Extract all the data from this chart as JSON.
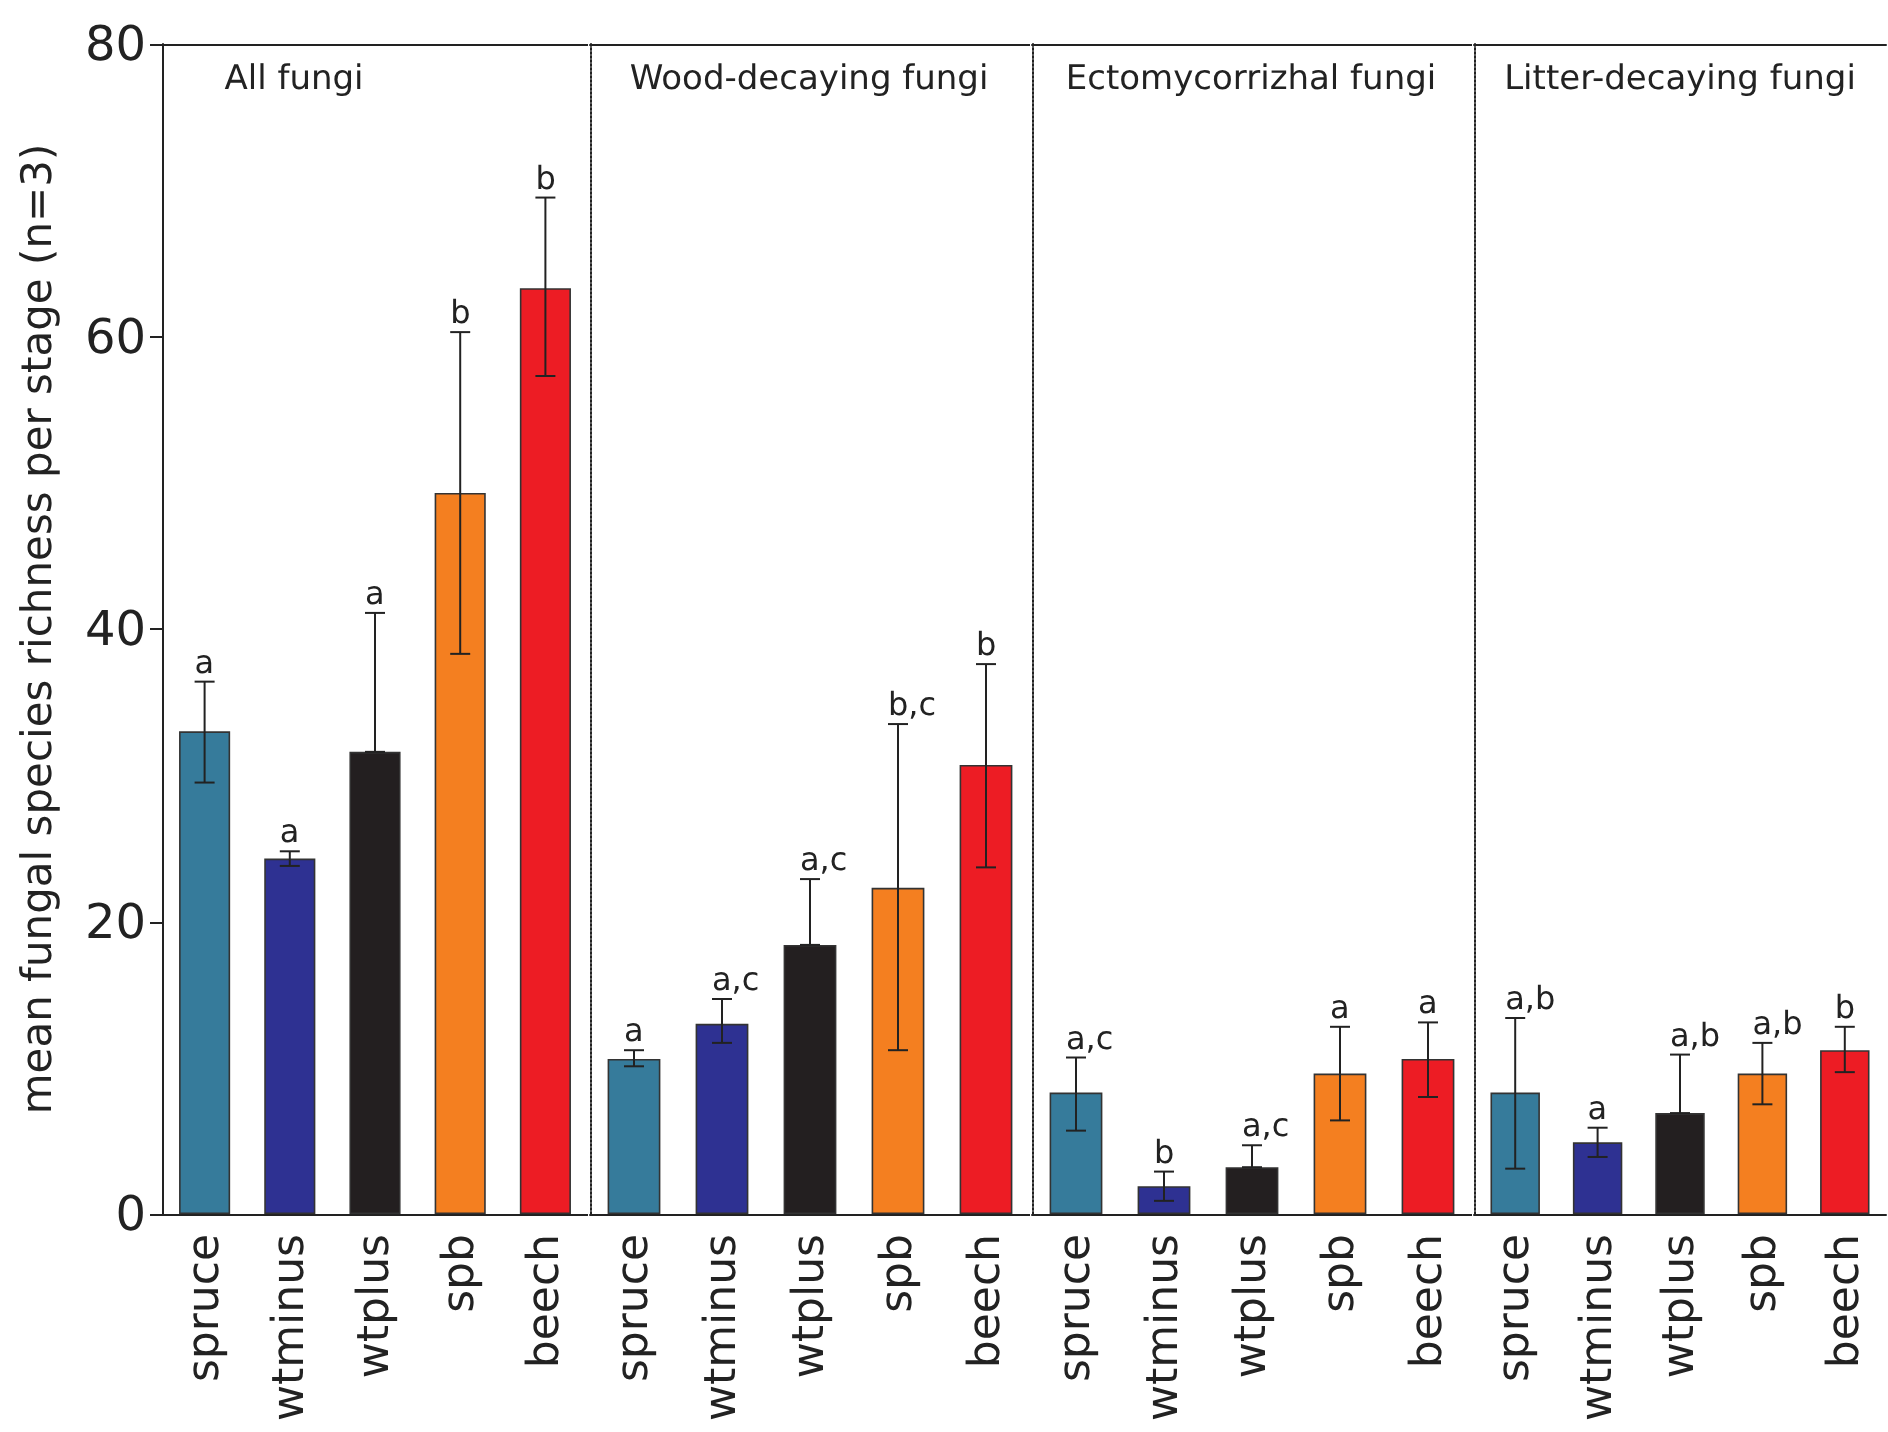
{
  "chart_data": [
    {
      "type": "bar",
      "title": "All fungi",
      "ylabel": "mean fungal species richness per stage (n=3)",
      "categories": [
        "spruce",
        "wtminus",
        "wtplus",
        "spb",
        "beech"
      ],
      "values": [
        33.0,
        24.3,
        31.6,
        49.3,
        63.3
      ],
      "colors": [
        "#367b9b",
        "#2e3192",
        "#231f20",
        "#f47f20",
        "#ed1c24"
      ],
      "errors": [
        [
          29.5,
          36.4
        ],
        [
          23.8,
          24.8
        ],
        [
          31.6,
          41.1
        ],
        [
          38.3,
          60.3
        ],
        [
          57.3,
          69.5
        ]
      ],
      "ylim": [
        0,
        80
      ],
      "yticks": [
        0,
        20,
        40,
        60,
        80
      ],
      "grid": false,
      "annotations": [
        {
          "text": "a",
          "x": "spruce",
          "y": 36.4
        },
        {
          "text": "a",
          "x": "wtminus",
          "y": 24.8
        },
        {
          "text": "a",
          "x": "wtplus",
          "y": 41.1
        },
        {
          "text": "b",
          "x": "spb",
          "y": 60.3
        },
        {
          "text": "b",
          "x": "beech",
          "y": 69.5
        }
      ]
    },
    {
      "type": "bar",
      "title": "Wood-decaying fungi",
      "categories": [
        "spruce",
        "wtminus",
        "wtplus",
        "spb",
        "beech"
      ],
      "values": [
        10.6,
        13.0,
        18.4,
        22.3,
        30.7
      ],
      "colors": [
        "#367b9b",
        "#2e3192",
        "#231f20",
        "#f47f20",
        "#ed1c24"
      ],
      "errors": [
        [
          10.1,
          11.2
        ],
        [
          11.7,
          14.7
        ],
        [
          18.4,
          22.9
        ],
        [
          11.2,
          33.5
        ],
        [
          23.7,
          37.6
        ]
      ],
      "ylim": [
        0,
        80
      ],
      "yticks": [
        0,
        20,
        40,
        60,
        80
      ],
      "tick_labels": "x",
      "grid": false,
      "annotations": [
        {
          "text": "a",
          "x": "spruce",
          "y": 11.2
        },
        {
          "text": "a,c",
          "x": "wtminus",
          "y": 14.7
        },
        {
          "text": "a,c",
          "x": "wtplus",
          "y": 22.9
        },
        {
          "text": "b,c",
          "x": "spb",
          "y": 33.5
        },
        {
          "text": "b",
          "x": "beech",
          "y": 37.6
        }
      ]
    },
    {
      "type": "bar",
      "title": "Ectomycorrizhal fungi",
      "categories": [
        "spruce",
        "wtminus",
        "wtplus",
        "spb",
        "beech"
      ],
      "values": [
        8.3,
        1.9,
        3.2,
        9.6,
        10.6
      ],
      "colors": [
        "#367b9b",
        "#2e3192",
        "#231f20",
        "#f47f20",
        "#ed1c24"
      ],
      "errors": [
        [
          5.7,
          10.7
        ],
        [
          0.9,
          2.9
        ],
        [
          3.2,
          4.7
        ],
        [
          6.4,
          12.8
        ],
        [
          8.0,
          13.1
        ]
      ],
      "ylim": [
        0,
        80
      ],
      "yticks": [
        0,
        20,
        40,
        60,
        80
      ],
      "tick_labels": "x",
      "grid": false,
      "annotations": [
        {
          "text": "a,c",
          "x": "spruce",
          "y": 10.7
        },
        {
          "text": "b",
          "x": "wtminus",
          "y": 2.9
        },
        {
          "text": "a,c",
          "x": "wtplus",
          "y": 4.7
        },
        {
          "text": "a",
          "x": "spb",
          "y": 12.8
        },
        {
          "text": "a",
          "x": "beech",
          "y": 13.1
        }
      ]
    },
    {
      "type": "bar",
      "title": "Litter-decaying fungi",
      "categories": [
        "spruce",
        "wtminus",
        "wtplus",
        "spb",
        "beech"
      ],
      "values": [
        8.3,
        4.9,
        6.9,
        9.6,
        11.2
      ],
      "colors": [
        "#367b9b",
        "#2e3192",
        "#231f20",
        "#f47f20",
        "#ed1c24"
      ],
      "errors": [
        [
          3.1,
          13.4
        ],
        [
          3.9,
          5.9
        ],
        [
          6.9,
          10.9
        ],
        [
          7.5,
          11.7
        ],
        [
          9.7,
          12.8
        ]
      ],
      "ylim": [
        0,
        80
      ],
      "yticks": [
        0,
        20,
        40,
        60,
        80
      ],
      "tick_labels": "x",
      "grid": false,
      "annotations": [
        {
          "text": "a,b",
          "x": "spruce",
          "y": 13.4
        },
        {
          "text": "a",
          "x": "wtminus",
          "y": 5.9
        },
        {
          "text": "a,b",
          "x": "wtplus",
          "y": 10.9
        },
        {
          "text": "a,b",
          "x": "spb",
          "y": 11.7
        },
        {
          "text": "b",
          "x": "beech",
          "y": 12.8
        }
      ]
    }
  ]
}
